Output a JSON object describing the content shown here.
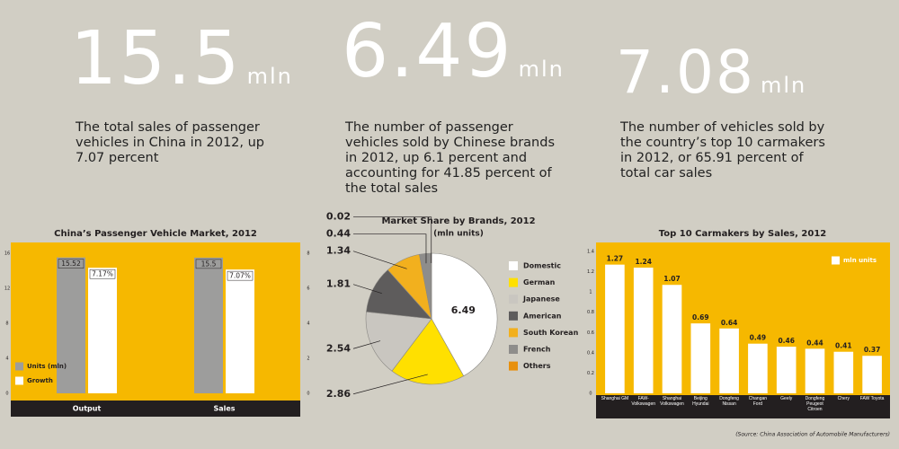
{
  "stats": [
    {
      "value": "15.5",
      "unit": "mln",
      "text": "The total sales of passenger vehicles in China in 2012, up 7.07 percent"
    },
    {
      "value": "6.49",
      "unit": "mln",
      "text": "The number of passenger vehicles sold by Chinese brands in 2012, up 6.1 percent and accounting for 41.85 percent of the total sales"
    },
    {
      "value": "7.08",
      "unit": "mln",
      "text": "The number of vehicles sold by the country’s top 10 carmakers in 2012, or 65.91 percent of total car sales"
    }
  ],
  "chart_data": [
    {
      "type": "bar",
      "title": "China’s Passenger Vehicle Market, 2012",
      "categories": [
        "Output",
        "Sales"
      ],
      "series": [
        {
          "name": "Units (mln)",
          "color": "#9d9d9c",
          "values": [
            15.52,
            15.5
          ]
        },
        {
          "name": "Growth",
          "color": "#ffffff",
          "axis": "y2",
          "values": [
            7.17,
            7.07
          ],
          "value_labels": [
            "7.17%",
            "7.07%"
          ]
        }
      ],
      "ylim": [
        0,
        16
      ],
      "yticks": [
        0,
        4,
        8,
        12,
        16
      ],
      "y2lim": [
        0,
        8
      ],
      "y2ticks": [
        0,
        2,
        4,
        6,
        8
      ],
      "legend": "lower left"
    },
    {
      "type": "pie",
      "title": "Market Share by Brands, 2012",
      "subtitle": "(mln units)",
      "categories": [
        "Domestic",
        "German",
        "Japanese",
        "American",
        "South Korean",
        "French",
        "Others"
      ],
      "values": [
        6.49,
        2.86,
        2.54,
        1.81,
        1.34,
        0.44,
        0.02
      ],
      "colors": [
        "#ffffff",
        "#ffe000",
        "#c9c6c0",
        "#5e5c5c",
        "#f2b01e",
        "#8e8d8b",
        "#e8900c"
      ],
      "legend": "right"
    },
    {
      "type": "bar",
      "title": "Top 10 Carmakers by Sales, 2012",
      "categories": [
        "Shanghai GM",
        "FAW-Volkswagen",
        "Shanghai Volkswagen",
        "Beijing Hyundai",
        "Dongfeng Nissan",
        "Changan Ford",
        "Geely",
        "Dongfeng Peugeot Citroen",
        "Chery",
        "FAW Toyota"
      ],
      "series": [
        {
          "name": "mln units",
          "color": "#ffffff",
          "values": [
            1.27,
            1.24,
            1.07,
            0.69,
            0.64,
            0.49,
            0.46,
            0.44,
            0.41,
            0.37
          ]
        }
      ],
      "ylim": [
        0,
        1.4
      ],
      "yticks": [
        0,
        0.2,
        0.4,
        0.6,
        0.8,
        1,
        1.2,
        1.4
      ],
      "legend": "upper right"
    }
  ],
  "source": "(Source: China Association of Automobile Manufacturers)"
}
